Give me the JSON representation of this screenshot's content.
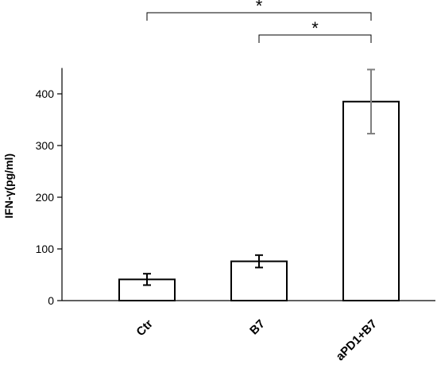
{
  "chart_data": {
    "type": "bar",
    "categories": [
      "Ctr",
      "B7",
      "aPD1+B7"
    ],
    "values": [
      41,
      76,
      385
    ],
    "errors": [
      11,
      12,
      62
    ],
    "error_colors": [
      "#000000",
      "#000000",
      "#7f7f7f"
    ],
    "ylabel": "IFN-γ(pg/ml)",
    "xlabel": "",
    "ylim": [
      0,
      450
    ],
    "yticks": [
      0,
      100,
      200,
      300,
      400
    ],
    "grid": false,
    "bar_fill": "#ffffff",
    "bar_stroke": "#000000",
    "significance": [
      {
        "from": "Ctr",
        "to": "aPD1+B7",
        "label": "*"
      },
      {
        "from": "B7",
        "to": "aPD1+B7",
        "label": "*"
      }
    ]
  }
}
